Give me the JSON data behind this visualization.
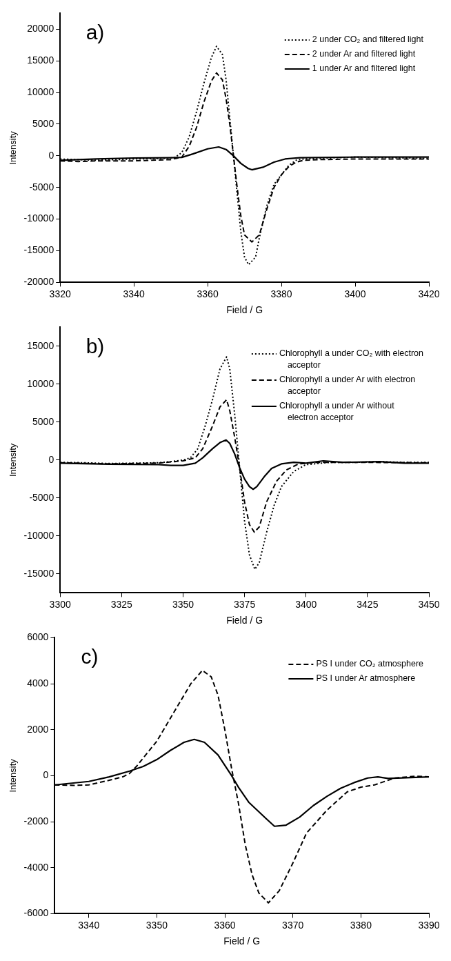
{
  "chart_data": [
    {
      "type": "line",
      "annotations": [
        "a)"
      ],
      "xlabel": "Field / G",
      "ylabel": "Intensity",
      "xlim": [
        3320,
        3420
      ],
      "xticks": [
        3320,
        3340,
        3360,
        3380,
        3400,
        3420
      ],
      "ylim": [
        -20000,
        22500
      ],
      "yticks": [
        -20000,
        -15000,
        -10000,
        -5000,
        0,
        5000,
        10000,
        15000,
        20000
      ],
      "grid": false,
      "legend": "top right",
      "marker": "none",
      "series": [
        {
          "name": "2 under CO₂ and filtered light",
          "color": "#000000",
          "line_style": "dotted",
          "x": [
            3320,
            3325,
            3330,
            3340,
            3348,
            3351,
            3353,
            3355,
            3357,
            3359,
            3361,
            3362.4,
            3364,
            3365,
            3366,
            3367,
            3368,
            3369,
            3370,
            3371.1,
            3373,
            3374,
            3376,
            3378,
            3380,
            3382,
            3384,
            3386,
            3390,
            3400,
            3410,
            3420
          ],
          "values": [
            -500,
            -600,
            -700,
            -500,
            -400,
            -300,
            500,
            3000,
            7000,
            11500,
            15500,
            17300,
            16000,
            12000,
            6000,
            0,
            -6000,
            -12000,
            -16000,
            -17200,
            -16000,
            -13000,
            -8000,
            -4500,
            -3000,
            -1500,
            -700,
            -500,
            -400,
            -200,
            -300,
            -400
          ]
        },
        {
          "name": "2 under Ar and filtered light",
          "color": "#000000",
          "line_style": "dashed",
          "x": [
            3320,
            3325,
            3330,
            3340,
            3350,
            3353,
            3355,
            3357,
            3359,
            3361,
            3362.4,
            3364,
            3365,
            3366,
            3367,
            3368,
            3369,
            3370,
            3372,
            3374,
            3376,
            3378,
            3380,
            3382,
            3384,
            3386,
            3390,
            3400,
            3410,
            3420
          ],
          "values": [
            -800,
            -900,
            -800,
            -800,
            -600,
            -200,
            1500,
            4500,
            8500,
            11800,
            13100,
            12000,
            9000,
            5000,
            0,
            -5000,
            -9500,
            -12500,
            -13600,
            -12500,
            -8500,
            -5000,
            -3000,
            -1700,
            -1000,
            -700,
            -600,
            -500,
            -500,
            -500
          ]
        },
        {
          "name": "1 under Ar and filtered light",
          "color": "#000000",
          "line_style": "solid",
          "x": [
            3320,
            3330,
            3340,
            3350,
            3353,
            3356,
            3360,
            3363,
            3365,
            3367,
            3369,
            3371,
            3372,
            3375,
            3378,
            3381,
            3385,
            3400,
            3420
          ],
          "values": [
            -700,
            -500,
            -350,
            -300,
            -250,
            300,
            1100,
            1400,
            1000,
            0,
            -1200,
            -2000,
            -2200,
            -1800,
            -1000,
            -500,
            -300,
            -200,
            -200
          ]
        }
      ]
    },
    {
      "type": "line",
      "annotations": [
        "b)"
      ],
      "xlabel": "Field / G",
      "ylabel": "Intensity",
      "xlim": [
        3300,
        3450
      ],
      "xticks": [
        3300,
        3325,
        3350,
        3375,
        3400,
        3425,
        3450
      ],
      "ylim": [
        -17500,
        17500
      ],
      "yticks": [
        -15000,
        -10000,
        -5000,
        0,
        5000,
        10000,
        15000
      ],
      "grid": false,
      "legend": "top right",
      "marker": "none",
      "series": [
        {
          "name": "Chlorophyll a under CO₂ with electron acceptor",
          "color": "#000000",
          "line_style": "dotted",
          "x": [
            3300,
            3310,
            3320,
            3330,
            3340,
            3345,
            3350,
            3353,
            3356,
            3359,
            3362,
            3365,
            3367.7,
            3369,
            3371,
            3373,
            3375,
            3377,
            3379.2,
            3381,
            3384,
            3387,
            3390,
            3395,
            3400,
            3410,
            3420,
            3430,
            3440,
            3450
          ],
          "values": [
            -300,
            -350,
            -450,
            -400,
            -350,
            -200,
            0,
            300,
            1500,
            4500,
            8000,
            12000,
            13600,
            12000,
            6000,
            -1000,
            -8000,
            -12500,
            -14400,
            -13500,
            -9500,
            -6000,
            -3500,
            -1500,
            -600,
            -300,
            -300,
            -200,
            -300,
            -300
          ]
        },
        {
          "name": "Chlorophyll a under Ar with electron acceptor",
          "color": "#000000",
          "line_style": "dashed",
          "x": [
            3300,
            3320,
            3340,
            3350,
            3355,
            3358,
            3362,
            3365,
            3367.7,
            3369,
            3371,
            3373,
            3375,
            3377,
            3379,
            3381,
            3384,
            3388,
            3392,
            3397,
            3405,
            3420,
            3450
          ],
          "values": [
            -350,
            -500,
            -400,
            -100,
            300,
            1500,
            4500,
            7000,
            7950,
            6500,
            3000,
            -1000,
            -5500,
            -8500,
            -9500,
            -8800,
            -5500,
            -2800,
            -1300,
            -500,
            -300,
            -300,
            -350
          ]
        },
        {
          "name": "Chlorophyll a under Ar without electron acceptor",
          "color": "#000000",
          "line_style": "solid",
          "x": [
            3300,
            3320,
            3340,
            3345,
            3350,
            3355,
            3358,
            3362,
            3365,
            3367.5,
            3369,
            3371,
            3373,
            3375,
            3377,
            3378.5,
            3380,
            3383,
            3386,
            3390,
            3395,
            3400,
            3407,
            3415,
            3430,
            3440,
            3450
          ],
          "values": [
            -400,
            -550,
            -600,
            -700,
            -700,
            -400,
            300,
            1500,
            2300,
            2650,
            2200,
            800,
            -1000,
            -2500,
            -3500,
            -3850,
            -3500,
            -2200,
            -1100,
            -500,
            -300,
            -400,
            -100,
            -300,
            -200,
            -400,
            -400
          ]
        }
      ]
    },
    {
      "type": "line",
      "annotations": [
        "c)"
      ],
      "xlabel": "Field / G",
      "ylabel": "Intensity",
      "xlim": [
        3335,
        3390
      ],
      "xticks": [
        3340,
        3350,
        3360,
        3370,
        3380,
        3390
      ],
      "ylim": [
        -6000,
        6000
      ],
      "yticks": [
        -6000,
        -4000,
        -2000,
        0,
        2000,
        4000,
        6000
      ],
      "grid": false,
      "legend": "top right",
      "marker": "none",
      "series": [
        {
          "name": "PS I under CO₂ atmosphere",
          "color": "#000000",
          "line_style": "dashed",
          "x": [
            3335,
            3338,
            3340,
            3343,
            3345,
            3346,
            3347,
            3350,
            3353,
            3355,
            3356.7,
            3358,
            3359,
            3360,
            3361,
            3362,
            3363,
            3364,
            3365,
            3366.4,
            3368,
            3370,
            3372,
            3375,
            3378,
            3380,
            3382,
            3384,
            3385,
            3388,
            3390
          ],
          "values": [
            -400,
            -420,
            -400,
            -200,
            -50,
            100,
            400,
            1500,
            3000,
            4000,
            4580,
            4300,
            3500,
            2000,
            300,
            -1200,
            -3000,
            -4300,
            -5100,
            -5530,
            -5000,
            -3800,
            -2500,
            -1500,
            -700,
            -500,
            -400,
            -200,
            -100,
            -20,
            -50
          ]
        },
        {
          "name": "PS I under Ar atmosphere",
          "color": "#000000",
          "line_style": "solid",
          "x": [
            3335,
            3340,
            3343,
            3346,
            3348,
            3350,
            3352,
            3354,
            3355.5,
            3357,
            3359,
            3361,
            3362,
            3363.5,
            3366,
            3367.3,
            3369,
            3371,
            3373,
            3375,
            3377,
            3379,
            3381,
            3382.5,
            3384,
            3390
          ],
          "values": [
            -400,
            -250,
            -50,
            200,
            400,
            700,
            1100,
            1450,
            1580,
            1450,
            900,
            0,
            -500,
            -1150,
            -1850,
            -2200,
            -2150,
            -1800,
            -1300,
            -900,
            -550,
            -300,
            -100,
            -50,
            -120,
            -50
          ]
        }
      ]
    }
  ]
}
